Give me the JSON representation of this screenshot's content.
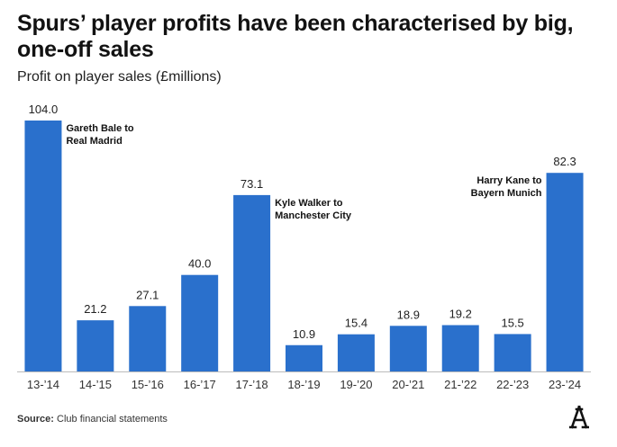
{
  "title": "Spurs’ player profits have been characterised by big, one-off sales",
  "subtitle": "Profit on player sales (£millions)",
  "source_label": "Source:",
  "source_text": "Club financial statements",
  "logo_name": "athletic-logo-icon",
  "colors": {
    "bar": "#2a70cc",
    "axis": "#bbbbbb",
    "text": "#121212"
  },
  "chart_data": {
    "type": "bar",
    "title": "Spurs’ player profits have been characterised by big, one-off sales",
    "subtitle": "Profit on player sales (£millions)",
    "xlabel": "",
    "ylabel": "",
    "ylim": [
      0,
      104
    ],
    "grid": false,
    "categories": [
      "13-’14",
      "14-’15",
      "15-’16",
      "16-’17",
      "17-’18",
      "18-’19",
      "19-’20",
      "20-’21",
      "21-’22",
      "22-’23",
      "23-’24"
    ],
    "values": [
      104.0,
      21.2,
      27.1,
      40.0,
      73.1,
      10.9,
      15.4,
      18.9,
      19.2,
      15.5,
      82.3
    ],
    "value_labels": [
      "104.0",
      "21.2",
      "27.1",
      "40.0",
      "73.1",
      "10.9",
      "15.4",
      "18.9",
      "19.2",
      "15.5",
      "82.3"
    ],
    "annotations": [
      {
        "category": "13-’14",
        "lines": [
          "Gareth Bale to",
          "Real Madrid"
        ],
        "side": "right"
      },
      {
        "category": "17-’18",
        "lines": [
          "Kyle Walker to",
          "Manchester City"
        ],
        "side": "right"
      },
      {
        "category": "23-’24",
        "lines": [
          "Harry Kane to",
          "Bayern Munich"
        ],
        "side": "left"
      }
    ]
  }
}
